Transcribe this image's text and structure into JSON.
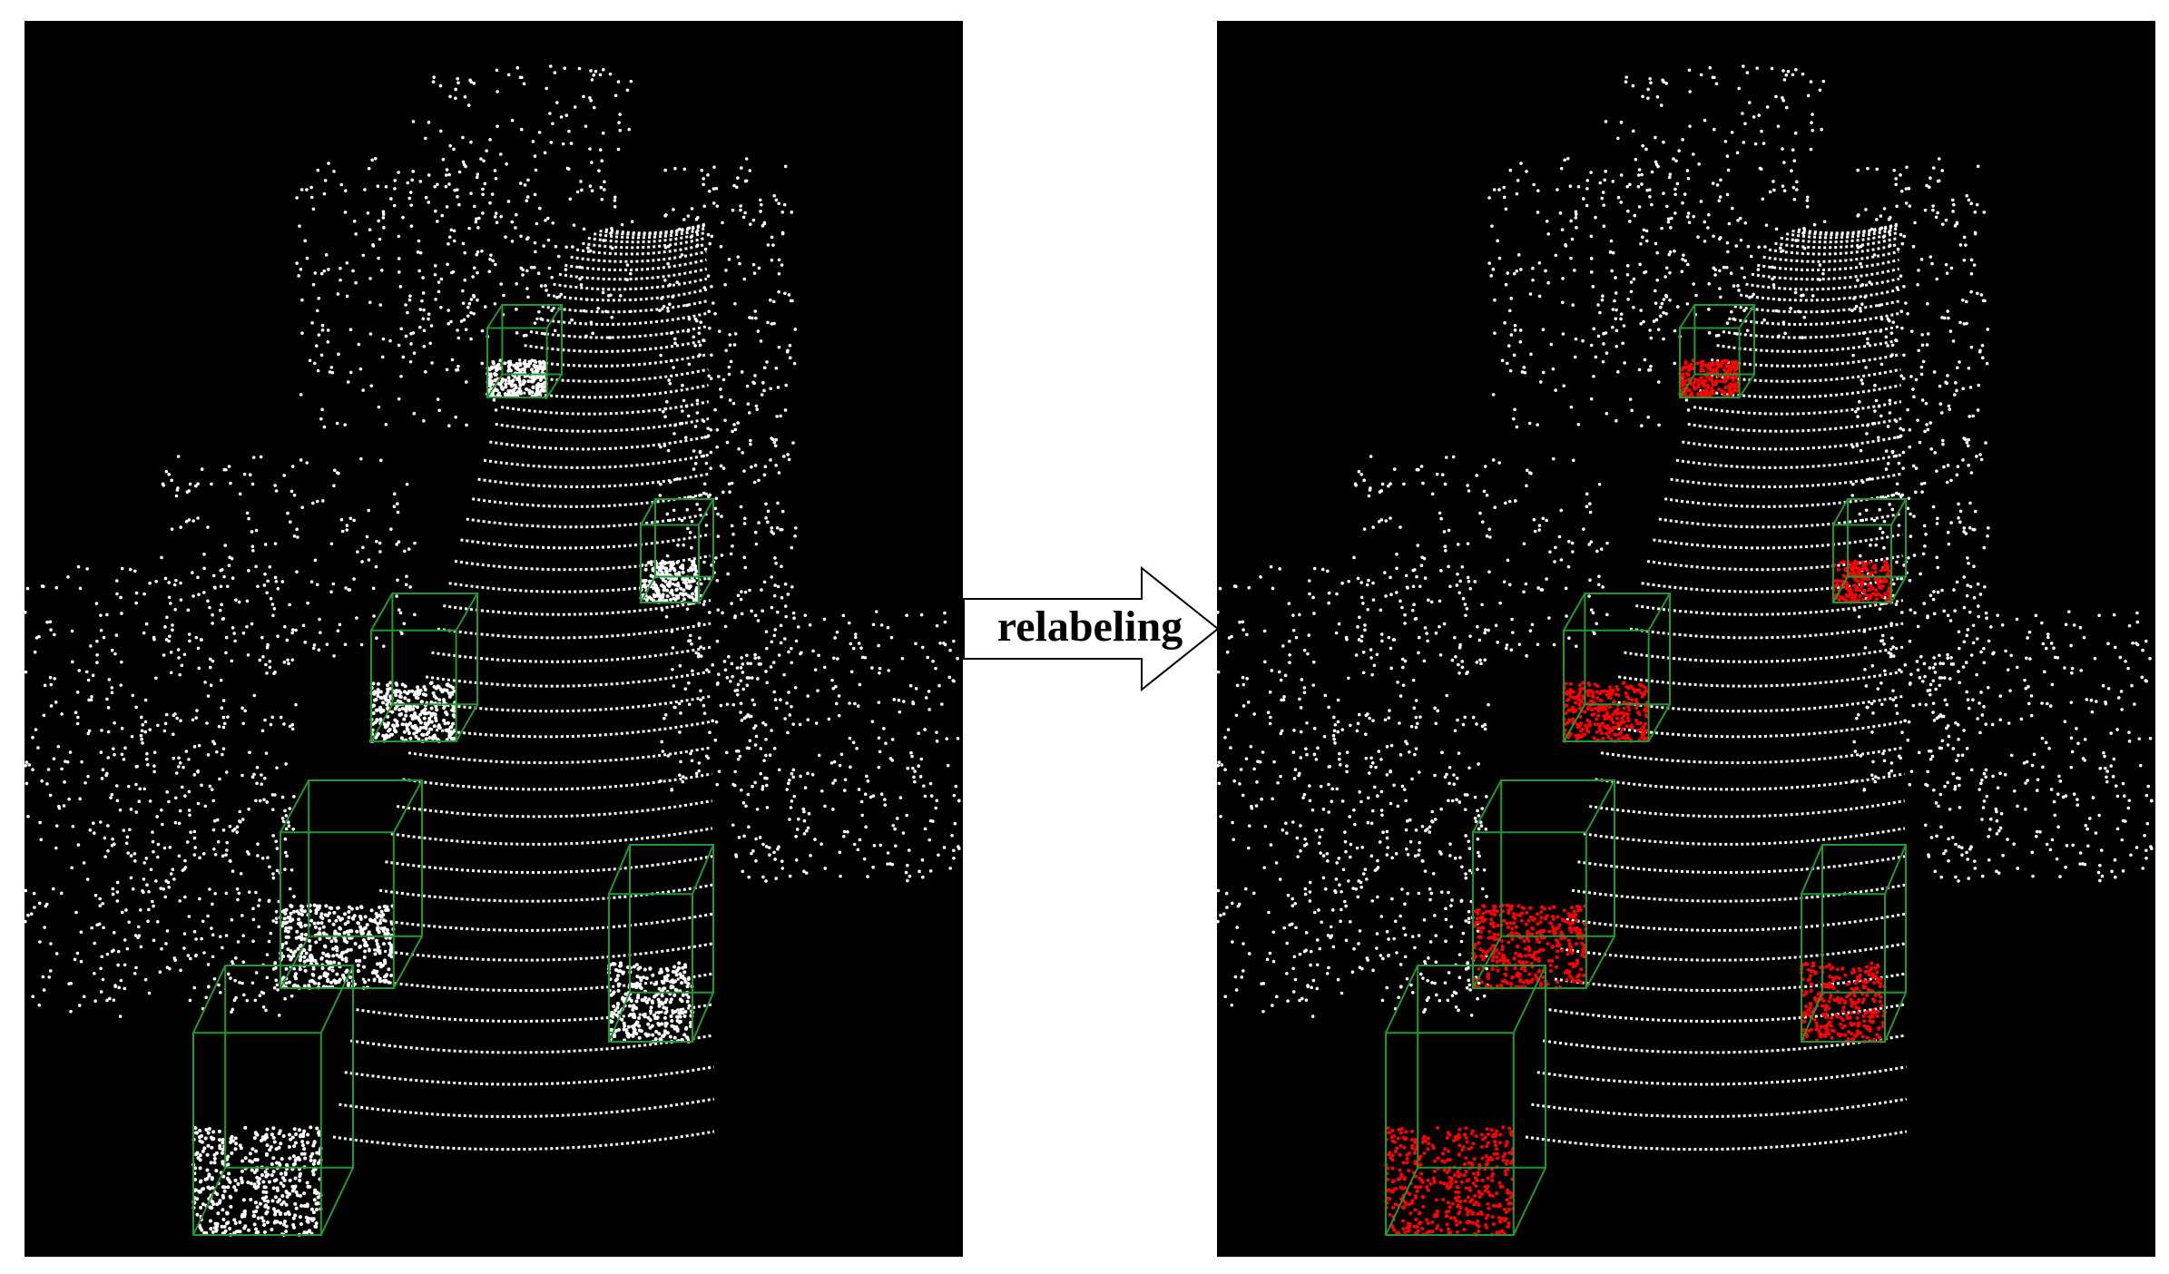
{
  "arrow_label": "relabeling"
}
